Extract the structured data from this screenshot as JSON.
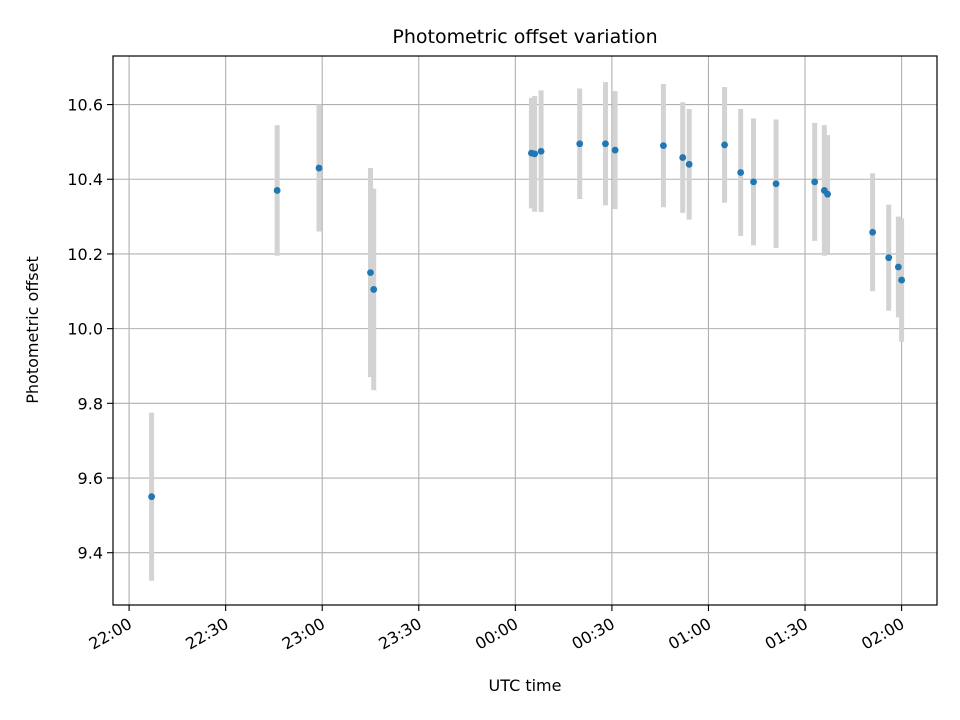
{
  "chart_data": {
    "type": "scatter",
    "title": "Photometric offset variation",
    "xlabel": "UTC time",
    "ylabel": "Photometric offset",
    "grid": true,
    "x_tick_labels": [
      "22:00",
      "22:30",
      "23:00",
      "23:30",
      "00:00",
      "00:30",
      "01:00",
      "01:30",
      "02:00"
    ],
    "x_tick_times": [
      "22:00",
      "22:30",
      "23:00",
      "23:30",
      "00:00",
      "00:30",
      "01:00",
      "01:30",
      "02:00"
    ],
    "y_tick_labels": [
      "9.4",
      "9.6",
      "9.8",
      "10.0",
      "10.2",
      "10.4",
      "10.6"
    ],
    "y_ticks": [
      9.4,
      9.6,
      9.8,
      10.0,
      10.2,
      10.4,
      10.6
    ],
    "xlim": [
      "21:55",
      "02:11"
    ],
    "ylim": [
      9.26,
      10.73
    ],
    "colors": {
      "point": "#1f77b4",
      "errorbar": "#d3d3d3",
      "grid": "#b0b0b0"
    },
    "series": [
      {
        "points": [
          {
            "x": "22:07",
            "y": 9.55,
            "err": 0.225
          },
          {
            "x": "22:46",
            "y": 10.37,
            "err": 0.175
          },
          {
            "x": "22:59",
            "y": 10.43,
            "err": 0.17
          },
          {
            "x": "23:15",
            "y": 10.15,
            "err": 0.28
          },
          {
            "x": "23:16",
            "y": 10.105,
            "err": 0.27
          },
          {
            "x": "00:05",
            "y": 10.47,
            "err": 0.148
          },
          {
            "x": "00:06",
            "y": 10.468,
            "err": 0.155
          },
          {
            "x": "00:08",
            "y": 10.475,
            "err": 0.163
          },
          {
            "x": "00:20",
            "y": 10.495,
            "err": 0.148
          },
          {
            "x": "00:28",
            "y": 10.495,
            "err": 0.165
          },
          {
            "x": "00:31",
            "y": 10.478,
            "err": 0.158
          },
          {
            "x": "00:46",
            "y": 10.49,
            "err": 0.165
          },
          {
            "x": "00:52",
            "y": 10.458,
            "err": 0.148
          },
          {
            "x": "00:54",
            "y": 10.44,
            "err": 0.148
          },
          {
            "x": "01:05",
            "y": 10.492,
            "err": 0.155
          },
          {
            "x": "01:10",
            "y": 10.418,
            "err": 0.17
          },
          {
            "x": "01:14",
            "y": 10.393,
            "err": 0.17
          },
          {
            "x": "01:21",
            "y": 10.388,
            "err": 0.172
          },
          {
            "x": "01:33",
            "y": 10.393,
            "err": 0.158
          },
          {
            "x": "01:36",
            "y": 10.37,
            "err": 0.175
          },
          {
            "x": "01:37",
            "y": 10.36,
            "err": 0.158
          },
          {
            "x": "01:51",
            "y": 10.258,
            "err": 0.158
          },
          {
            "x": "01:56",
            "y": 10.19,
            "err": 0.142
          },
          {
            "x": "01:59",
            "y": 10.165,
            "err": 0.135
          },
          {
            "x": "02:00",
            "y": 10.13,
            "err": 0.165
          }
        ]
      }
    ]
  }
}
